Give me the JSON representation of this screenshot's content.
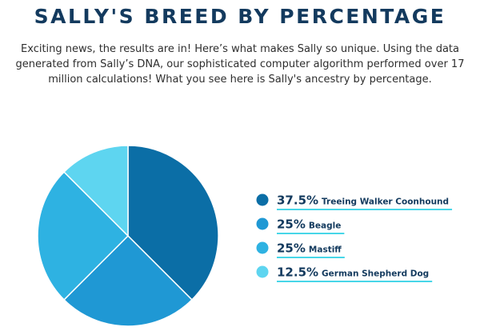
{
  "page": {
    "title": "SALLY'S BREED BY PERCENTAGE",
    "intro": "Exciting news, the results are in! Here’s what makes Sally so unique. Using the data generated from Sally’s DNA, our sophisticated computer algorithm performed over 17 million calculations! What you see here is Sally's ancestry by percentage."
  },
  "colors": {
    "title": "#133a5e",
    "intro": "#2e2e2e",
    "legend_text": "#133a5e",
    "underline": "#47d6e8"
  },
  "chart_data": {
    "type": "pie",
    "title": "SALLY'S BREED BY PERCENTAGE",
    "start_angle_deg": 0,
    "direction": "clockwise",
    "legend_position": "right",
    "slices": [
      {
        "label": "Treeing Walker Coonhound",
        "value": 37.5,
        "value_label": "37.5%",
        "color": "#0b6ea6"
      },
      {
        "label": "Beagle",
        "value": 25,
        "value_label": "25%",
        "color": "#1f98d4"
      },
      {
        "label": "Mastiff",
        "value": 25,
        "value_label": "25%",
        "color": "#2eb2e2"
      },
      {
        "label": "German Shepherd Dog",
        "value": 12.5,
        "value_label": "12.5%",
        "color": "#5ed5f0"
      }
    ]
  }
}
